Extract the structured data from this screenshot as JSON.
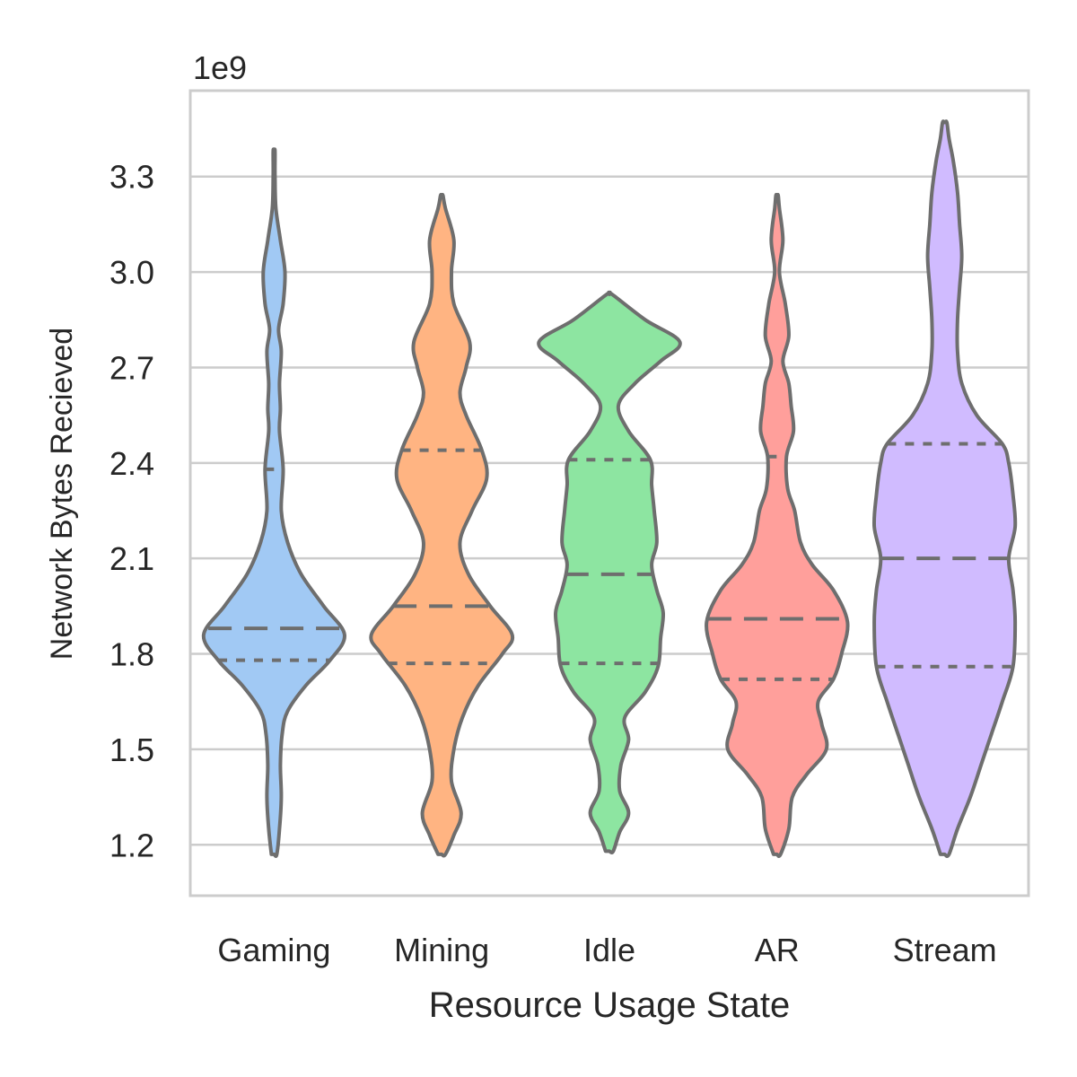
{
  "chart_data": {
    "type": "violin",
    "x_label": "Resource Usage State",
    "y_label": "Network Bytes Recieved",
    "y_offset_text": "1e9",
    "y_ticks": [
      1.2,
      1.5,
      1.8,
      2.1,
      2.4,
      2.7,
      3.0,
      3.3
    ],
    "y_tick_labels": [
      "1.2",
      "1.5",
      "1.8",
      "2.1",
      "2.4",
      "2.7",
      "3.0",
      "3.3"
    ],
    "ylim": [
      1.04,
      3.57
    ],
    "grid": true,
    "categories": [
      "Gaming",
      "Mining",
      "Idle",
      "AR",
      "Stream"
    ],
    "series": [
      {
        "category": "Gaming",
        "color": "#a1c9f4",
        "min": 1.17,
        "max": 3.38,
        "q1": 1.78,
        "median": 1.88,
        "q3": 2.38,
        "density": [
          [
            1.17,
            0.03
          ],
          [
            1.25,
            0.06
          ],
          [
            1.35,
            0.08
          ],
          [
            1.45,
            0.07
          ],
          [
            1.55,
            0.09
          ],
          [
            1.62,
            0.15
          ],
          [
            1.7,
            0.35
          ],
          [
            1.78,
            0.62
          ],
          [
            1.86,
            0.78
          ],
          [
            1.95,
            0.55
          ],
          [
            2.05,
            0.3
          ],
          [
            2.15,
            0.15
          ],
          [
            2.25,
            0.08
          ],
          [
            2.38,
            0.1
          ],
          [
            2.5,
            0.06
          ],
          [
            2.57,
            0.07
          ],
          [
            2.65,
            0.06
          ],
          [
            2.75,
            0.08
          ],
          [
            2.82,
            0.05
          ],
          [
            2.9,
            0.1
          ],
          [
            3.0,
            0.12
          ],
          [
            3.1,
            0.07
          ],
          [
            3.2,
            0.02
          ],
          [
            3.3,
            0.01
          ],
          [
            3.38,
            0.01
          ]
        ]
      },
      {
        "category": "Mining",
        "color": "#ffb482",
        "min": 1.17,
        "max": 3.24,
        "q1": 1.77,
        "median": 1.95,
        "q3": 2.44,
        "density": [
          [
            1.17,
            0.03
          ],
          [
            1.23,
            0.1
          ],
          [
            1.3,
            0.16
          ],
          [
            1.4,
            0.08
          ],
          [
            1.5,
            0.1
          ],
          [
            1.6,
            0.17
          ],
          [
            1.7,
            0.3
          ],
          [
            1.8,
            0.5
          ],
          [
            1.86,
            0.58
          ],
          [
            1.95,
            0.4
          ],
          [
            2.05,
            0.22
          ],
          [
            2.15,
            0.15
          ],
          [
            2.25,
            0.25
          ],
          [
            2.35,
            0.37
          ],
          [
            2.44,
            0.33
          ],
          [
            2.55,
            0.2
          ],
          [
            2.62,
            0.15
          ],
          [
            2.7,
            0.2
          ],
          [
            2.78,
            0.23
          ],
          [
            2.9,
            0.1
          ],
          [
            3.0,
            0.08
          ],
          [
            3.1,
            0.1
          ],
          [
            3.2,
            0.03
          ],
          [
            3.24,
            0.01
          ]
        ]
      },
      {
        "category": "Idle",
        "color": "#8de5a1",
        "min": 1.18,
        "max": 2.93,
        "q1": 1.77,
        "median": 2.05,
        "q3": 2.41,
        "density": [
          [
            1.18,
            0.03
          ],
          [
            1.24,
            0.08
          ],
          [
            1.3,
            0.15
          ],
          [
            1.37,
            0.08
          ],
          [
            1.45,
            0.09
          ],
          [
            1.53,
            0.15
          ],
          [
            1.6,
            0.12
          ],
          [
            1.68,
            0.28
          ],
          [
            1.76,
            0.38
          ],
          [
            1.85,
            0.4
          ],
          [
            1.93,
            0.42
          ],
          [
            2.0,
            0.37
          ],
          [
            2.08,
            0.33
          ],
          [
            2.15,
            0.37
          ],
          [
            2.25,
            0.35
          ],
          [
            2.33,
            0.33
          ],
          [
            2.41,
            0.32
          ],
          [
            2.5,
            0.15
          ],
          [
            2.58,
            0.07
          ],
          [
            2.65,
            0.2
          ],
          [
            2.72,
            0.4
          ],
          [
            2.78,
            0.55
          ],
          [
            2.85,
            0.28
          ],
          [
            2.93,
            0.02
          ]
        ]
      },
      {
        "category": "AR",
        "color": "#ff9f9b",
        "min": 1.17,
        "max": 3.24,
        "q1": 1.72,
        "median": 1.91,
        "q3": 2.42,
        "density": [
          [
            1.17,
            0.03
          ],
          [
            1.25,
            0.1
          ],
          [
            1.35,
            0.13
          ],
          [
            1.42,
            0.25
          ],
          [
            1.5,
            0.42
          ],
          [
            1.58,
            0.38
          ],
          [
            1.65,
            0.35
          ],
          [
            1.72,
            0.48
          ],
          [
            1.8,
            0.55
          ],
          [
            1.9,
            0.6
          ],
          [
            2.0,
            0.48
          ],
          [
            2.08,
            0.3
          ],
          [
            2.15,
            0.2
          ],
          [
            2.25,
            0.15
          ],
          [
            2.32,
            0.09
          ],
          [
            2.42,
            0.08
          ],
          [
            2.5,
            0.14
          ],
          [
            2.58,
            0.12
          ],
          [
            2.65,
            0.1
          ],
          [
            2.72,
            0.05
          ],
          [
            2.8,
            0.1
          ],
          [
            2.9,
            0.07
          ],
          [
            3.0,
            0.02
          ],
          [
            3.1,
            0.05
          ],
          [
            3.2,
            0.02
          ],
          [
            3.24,
            0.01
          ]
        ]
      },
      {
        "category": "Stream",
        "color": "#d0bbff",
        "min": 1.17,
        "max": 3.47,
        "q1": 1.76,
        "median": 2.1,
        "q3": 2.46,
        "density": [
          [
            1.17,
            0.02
          ],
          [
            1.25,
            0.06
          ],
          [
            1.35,
            0.12
          ],
          [
            1.45,
            0.17
          ],
          [
            1.55,
            0.22
          ],
          [
            1.65,
            0.27
          ],
          [
            1.76,
            0.32
          ],
          [
            1.9,
            0.33
          ],
          [
            2.0,
            0.32
          ],
          [
            2.1,
            0.3
          ],
          [
            2.2,
            0.33
          ],
          [
            2.3,
            0.32
          ],
          [
            2.4,
            0.3
          ],
          [
            2.46,
            0.27
          ],
          [
            2.55,
            0.15
          ],
          [
            2.65,
            0.08
          ],
          [
            2.75,
            0.06
          ],
          [
            2.85,
            0.06
          ],
          [
            2.95,
            0.07
          ],
          [
            3.05,
            0.08
          ],
          [
            3.15,
            0.07
          ],
          [
            3.25,
            0.06
          ],
          [
            3.35,
            0.04
          ],
          [
            3.42,
            0.02
          ],
          [
            3.47,
            0.01
          ]
        ]
      }
    ]
  }
}
